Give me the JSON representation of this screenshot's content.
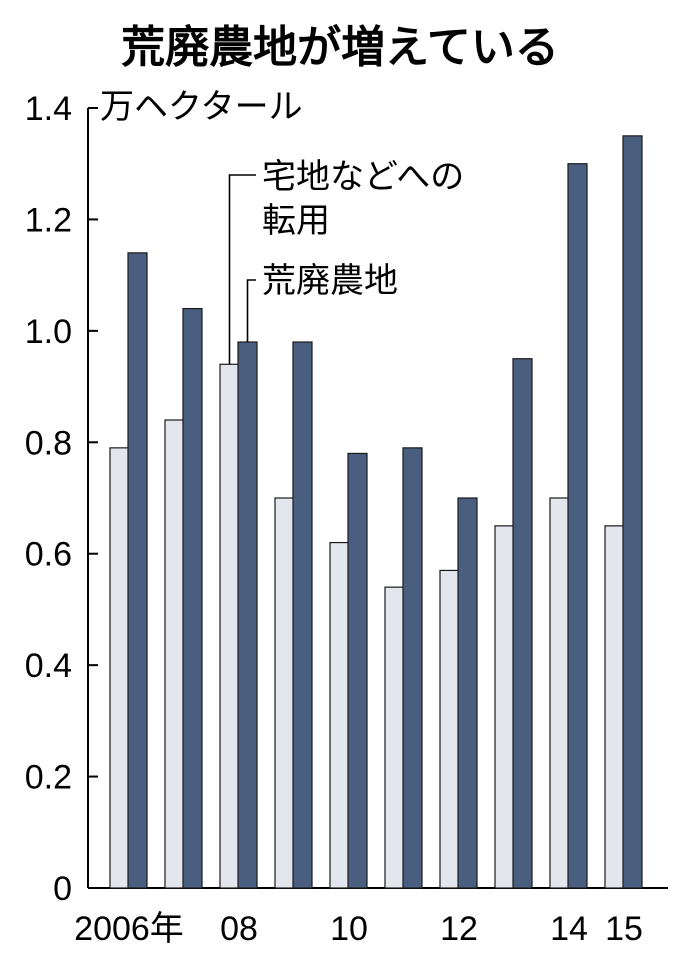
{
  "chart_data": {
    "type": "bar",
    "title": "荒廃農地が増えている",
    "unit": "万ヘクタール",
    "ylim": [
      0,
      1.4
    ],
    "yticks": [
      "0",
      "0.2",
      "0.4",
      "0.6",
      "0.8",
      "1.0",
      "1.2",
      "1.4"
    ],
    "categories": [
      "2006",
      "2007",
      "2008",
      "2009",
      "2010",
      "2011",
      "2012",
      "2013",
      "2014",
      "2015"
    ],
    "xtick_labels": [
      "2006年",
      "",
      "08",
      "",
      "10",
      "",
      "12",
      "",
      "14",
      "15"
    ],
    "series": [
      {
        "name": "宅地などへの転用",
        "values": [
          0.79,
          0.84,
          0.94,
          0.7,
          0.62,
          0.54,
          0.57,
          0.65,
          0.7,
          0.65
        ]
      },
      {
        "name": "荒廃農地",
        "values": [
          1.14,
          1.04,
          0.98,
          0.98,
          0.78,
          0.79,
          0.7,
          0.95,
          1.3,
          1.35
        ]
      }
    ],
    "legend": {
      "line1": "宅地などへの",
      "line2": "転用",
      "label2": "荒廃農地"
    },
    "colors": {
      "light": "#e4e6ee",
      "dark": "#4a5e80",
      "stroke": "#1a1a1a"
    },
    "grid": false
  }
}
